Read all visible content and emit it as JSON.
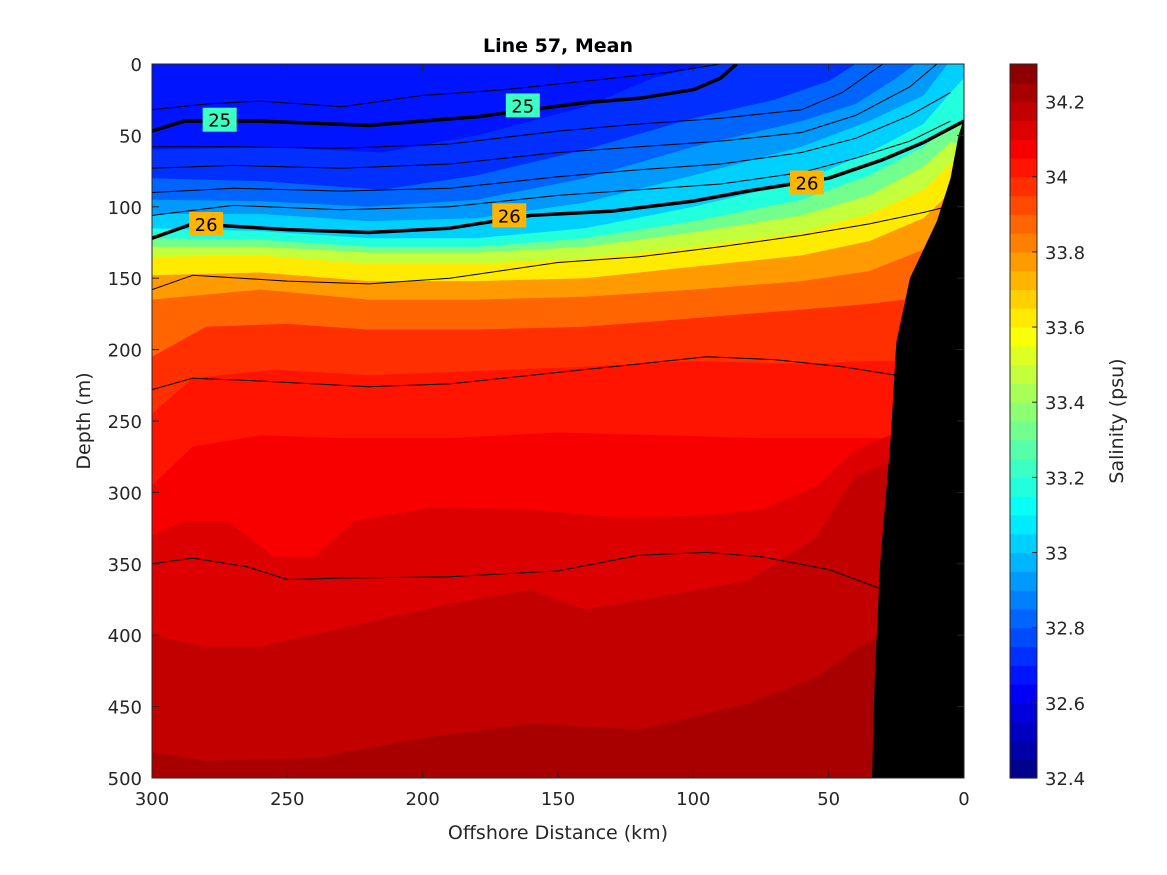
{
  "chart_data": {
    "type": "contour",
    "title": "Line 57, Mean",
    "xlabel": "Offshore Distance (km)",
    "ylabel": "Depth (m)",
    "colorbar_label": "Salinity (psu)",
    "xlim": [
      300,
      0
    ],
    "ylim": [
      0,
      500
    ],
    "x_reversed": true,
    "y_reversed": true,
    "xticks": [
      300,
      250,
      200,
      150,
      100,
      50,
      0
    ],
    "yticks": [
      0,
      50,
      100,
      150,
      200,
      250,
      300,
      350,
      400,
      450,
      500
    ],
    "clim": [
      32.4,
      34.3
    ],
    "color_step": 0.05,
    "colorbar_ticks": [
      "32.4",
      "32.6",
      "32.8",
      "33",
      "33.2",
      "33.4",
      "33.6",
      "33.8",
      "34",
      "34.2"
    ],
    "colormap": "jet",
    "bathymetry_color": "#000000",
    "salinity_isolines": [
      {
        "level": 32.7,
        "points": [
          [
            298,
            60
          ],
          [
            260,
            58
          ],
          [
            215,
            62
          ],
          [
            180,
            50
          ],
          [
            140,
            30
          ],
          [
            115,
            10
          ],
          [
            95,
            0
          ]
        ]
      },
      {
        "level": 32.8,
        "points": [
          [
            300,
            80
          ],
          [
            260,
            82
          ],
          [
            215,
            88
          ],
          [
            180,
            78
          ],
          [
            140,
            60
          ],
          [
            100,
            38
          ],
          [
            70,
            25
          ],
          [
            50,
            12
          ],
          [
            40,
            0
          ]
        ]
      },
      {
        "level": 32.9,
        "points": [
          [
            300,
            95
          ],
          [
            260,
            96
          ],
          [
            220,
            100
          ],
          [
            180,
            95
          ],
          [
            140,
            80
          ],
          [
            100,
            58
          ],
          [
            60,
            40
          ],
          [
            40,
            28
          ],
          [
            25,
            10
          ],
          [
            18,
            0
          ]
        ]
      },
      {
        "level": 33.0,
        "points": [
          [
            300,
            105
          ],
          [
            260,
            105
          ],
          [
            220,
            110
          ],
          [
            180,
            108
          ],
          [
            140,
            97
          ],
          [
            100,
            78
          ],
          [
            60,
            58
          ],
          [
            35,
            40
          ],
          [
            15,
            22
          ],
          [
            6,
            0
          ]
        ]
      },
      {
        "level": 33.15,
        "points": [
          [
            300,
            115
          ],
          [
            260,
            117
          ],
          [
            220,
            122
          ],
          [
            180,
            122
          ],
          [
            140,
            115
          ],
          [
            100,
            100
          ],
          [
            60,
            82
          ],
          [
            35,
            62
          ],
          [
            15,
            42
          ],
          [
            5,
            20
          ],
          [
            0,
            10
          ]
        ]
      },
      {
        "level": 33.3,
        "points": [
          [
            300,
            122
          ],
          [
            260,
            123
          ],
          [
            220,
            128
          ],
          [
            180,
            128
          ],
          [
            140,
            122
          ],
          [
            100,
            110
          ],
          [
            60,
            95
          ],
          [
            35,
            78
          ],
          [
            15,
            58
          ],
          [
            4,
            42
          ]
        ]
      },
      {
        "level": 33.45,
        "points": [
          [
            300,
            128
          ],
          [
            260,
            128
          ],
          [
            220,
            132
          ],
          [
            180,
            132
          ],
          [
            140,
            128
          ],
          [
            100,
            118
          ],
          [
            60,
            106
          ],
          [
            35,
            92
          ],
          [
            15,
            72
          ],
          [
            5,
            55
          ]
        ]
      },
      {
        "level": 33.6,
        "points": [
          [
            300,
            135
          ],
          [
            260,
            134
          ],
          [
            220,
            140
          ],
          [
            180,
            140
          ],
          [
            140,
            136
          ],
          [
            100,
            128
          ],
          [
            60,
            118
          ],
          [
            35,
            105
          ],
          [
            15,
            88
          ],
          [
            5,
            70
          ]
        ]
      },
      {
        "level": 33.75,
        "points": [
          [
            300,
            148
          ],
          [
            260,
            146
          ],
          [
            220,
            152
          ],
          [
            180,
            152
          ],
          [
            140,
            150
          ],
          [
            100,
            142
          ],
          [
            60,
            134
          ],
          [
            35,
            124
          ],
          [
            15,
            108
          ],
          [
            5,
            90
          ]
        ]
      },
      {
        "level": 33.85,
        "points": [
          [
            300,
            165
          ],
          [
            260,
            158
          ],
          [
            220,
            165
          ],
          [
            180,
            165
          ],
          [
            140,
            163
          ],
          [
            100,
            158
          ],
          [
            60,
            152
          ],
          [
            35,
            145
          ],
          [
            15,
            130
          ],
          [
            8,
            112
          ]
        ]
      },
      {
        "level": 33.95,
        "points": [
          [
            300,
            205
          ],
          [
            280,
            184
          ],
          [
            250,
            182
          ],
          [
            220,
            186
          ],
          [
            180,
            186
          ],
          [
            140,
            184
          ],
          [
            100,
            178
          ],
          [
            60,
            172
          ],
          [
            35,
            168
          ],
          [
            22,
            165
          ]
        ]
      },
      {
        "level": 34.0,
        "points": [
          [
            300,
            245
          ],
          [
            285,
            220
          ],
          [
            255,
            214
          ],
          [
            220,
            218
          ],
          [
            180,
            215
          ],
          [
            140,
            212
          ],
          [
            100,
            208
          ],
          [
            60,
            210
          ],
          [
            35,
            208
          ],
          [
            22,
            208
          ]
        ]
      },
      {
        "level": 34.05,
        "points": [
          [
            300,
            295
          ],
          [
            285,
            268
          ],
          [
            260,
            260
          ],
          [
            230,
            262
          ],
          [
            190,
            262
          ],
          [
            150,
            258
          ],
          [
            110,
            260
          ],
          [
            75,
            262
          ],
          [
            50,
            262
          ],
          [
            22,
            262
          ]
        ]
      },
      {
        "level": 34.1,
        "points": [
          [
            300,
            330
          ],
          [
            288,
            320
          ],
          [
            272,
            320
          ],
          [
            255,
            345
          ],
          [
            240,
            345
          ],
          [
            225,
            320
          ],
          [
            195,
            310
          ],
          [
            160,
            312
          ],
          [
            125,
            318
          ],
          [
            95,
            316
          ],
          [
            75,
            312
          ],
          [
            55,
            296
          ],
          [
            40,
            270
          ],
          [
            25,
            258
          ]
        ]
      },
      {
        "level": 34.15,
        "points": [
          [
            300,
            400
          ],
          [
            280,
            408
          ],
          [
            260,
            408
          ],
          [
            230,
            395
          ],
          [
            190,
            378
          ],
          [
            160,
            368
          ],
          [
            140,
            382
          ],
          [
            110,
            372
          ],
          [
            80,
            362
          ],
          [
            55,
            332
          ],
          [
            40,
            288
          ],
          [
            26,
            278
          ]
        ]
      },
      {
        "level": 34.2,
        "points": [
          [
            300,
            482
          ],
          [
            280,
            488
          ],
          [
            240,
            486
          ],
          [
            200,
            472
          ],
          [
            160,
            462
          ],
          [
            120,
            466
          ],
          [
            80,
            448
          ],
          [
            55,
            430
          ],
          [
            40,
            410
          ],
          [
            30,
            400
          ]
        ]
      }
    ],
    "density_isolines": [
      {
        "level": 24.8,
        "points": [
          [
            300,
            32
          ],
          [
            280,
            28
          ],
          [
            260,
            26
          ],
          [
            230,
            30
          ],
          [
            200,
            22
          ],
          [
            170,
            18
          ],
          [
            140,
            12
          ],
          [
            110,
            6
          ],
          [
            90,
            0
          ]
        ]
      },
      {
        "level": 25,
        "labels": [
          [
            275,
            39
          ],
          [
            163,
            29
          ]
        ],
        "points": [
          [
            300,
            47
          ],
          [
            288,
            40
          ],
          [
            260,
            40
          ],
          [
            220,
            43
          ],
          [
            180,
            37
          ],
          [
            140,
            27
          ],
          [
            120,
            24
          ],
          [
            100,
            18
          ],
          [
            90,
            10
          ],
          [
            84,
            0
          ]
        ]
      },
      {
        "level": 25.2,
        "points": [
          [
            300,
            58
          ],
          [
            270,
            58
          ],
          [
            230,
            59
          ],
          [
            190,
            56
          ],
          [
            150,
            47
          ],
          [
            120,
            42
          ],
          [
            90,
            38
          ],
          [
            60,
            32
          ],
          [
            45,
            20
          ],
          [
            30,
            0
          ]
        ]
      },
      {
        "level": 25.4,
        "points": [
          [
            300,
            73
          ],
          [
            270,
            71
          ],
          [
            230,
            73
          ],
          [
            190,
            70
          ],
          [
            150,
            62
          ],
          [
            120,
            58
          ],
          [
            90,
            54
          ],
          [
            60,
            48
          ],
          [
            40,
            36
          ],
          [
            20,
            16
          ],
          [
            10,
            0
          ]
        ]
      },
      {
        "level": 25.6,
        "points": [
          [
            300,
            90
          ],
          [
            270,
            87
          ],
          [
            230,
            89
          ],
          [
            190,
            87
          ],
          [
            150,
            79
          ],
          [
            120,
            74
          ],
          [
            90,
            70
          ],
          [
            60,
            62
          ],
          [
            40,
            52
          ],
          [
            20,
            36
          ],
          [
            5,
            20
          ]
        ]
      },
      {
        "level": 25.8,
        "points": [
          [
            300,
            106
          ],
          [
            270,
            99
          ],
          [
            230,
            102
          ],
          [
            190,
            100
          ],
          [
            150,
            92
          ],
          [
            120,
            88
          ],
          [
            90,
            84
          ],
          [
            60,
            76
          ],
          [
            40,
            66
          ],
          [
            20,
            54
          ],
          [
            5,
            40
          ]
        ]
      },
      {
        "level": 26,
        "labels": [
          [
            280,
            112
          ],
          [
            168,
            106
          ],
          [
            58,
            83
          ]
        ],
        "points": [
          [
            300,
            122
          ],
          [
            285,
            112
          ],
          [
            250,
            116
          ],
          [
            220,
            118
          ],
          [
            190,
            115
          ],
          [
            160,
            106
          ],
          [
            130,
            103
          ],
          [
            100,
            96
          ],
          [
            80,
            89
          ],
          [
            50,
            80
          ],
          [
            30,
            67
          ],
          [
            15,
            55
          ],
          [
            0,
            40
          ]
        ]
      },
      {
        "level": 26.2,
        "points": [
          [
            300,
            158
          ],
          [
            285,
            148
          ],
          [
            250,
            152
          ],
          [
            220,
            154
          ],
          [
            190,
            150
          ],
          [
            150,
            139
          ],
          [
            120,
            135
          ],
          [
            90,
            128
          ],
          [
            60,
            120
          ],
          [
            35,
            112
          ],
          [
            15,
            104
          ],
          [
            0,
            97
          ]
        ]
      },
      {
        "level": 26.4,
        "points": [
          [
            300,
            228
          ],
          [
            285,
            220
          ],
          [
            260,
            222
          ],
          [
            220,
            226
          ],
          [
            190,
            224
          ],
          [
            150,
            216
          ],
          [
            120,
            210
          ],
          [
            95,
            205
          ],
          [
            70,
            207
          ],
          [
            45,
            212
          ],
          [
            25,
            218
          ]
        ]
      },
      {
        "level": 26.6,
        "points": [
          [
            300,
            350
          ],
          [
            285,
            346
          ],
          [
            265,
            352
          ],
          [
            250,
            361
          ],
          [
            230,
            360
          ],
          [
            190,
            359
          ],
          [
            150,
            355
          ],
          [
            120,
            344
          ],
          [
            95,
            342
          ],
          [
            75,
            345
          ],
          [
            50,
            354
          ],
          [
            30,
            368
          ]
        ]
      }
    ],
    "bathymetry": [
      [
        34,
        500
      ],
      [
        33,
        430
      ],
      [
        31,
        350
      ],
      [
        27,
        260
      ],
      [
        25,
        195
      ],
      [
        20,
        150
      ],
      [
        10,
        110
      ],
      [
        5,
        80
      ],
      [
        2,
        50
      ],
      [
        0,
        38
      ],
      [
        0,
        500
      ]
    ]
  }
}
